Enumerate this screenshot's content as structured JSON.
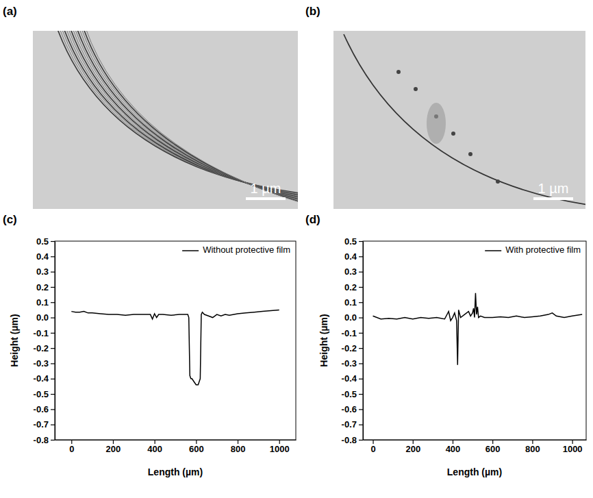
{
  "panel_labels": [
    "(a)",
    "(b)",
    "(c)",
    "(d)"
  ],
  "images": [
    {
      "scale_bar": "1 µm"
    },
    {
      "scale_bar": "1 µm"
    }
  ],
  "chart_data": [
    {
      "type": "line",
      "x_label": "Length (µm)",
      "y_label": "Height (µm)",
      "x": [
        0,
        20,
        40,
        60,
        80,
        100,
        140,
        180,
        220,
        260,
        300,
        340,
        380,
        390,
        400,
        410,
        420,
        440,
        480,
        520,
        550,
        560,
        565,
        570,
        575,
        580,
        590,
        600,
        610,
        615,
        620,
        625,
        630,
        640,
        660,
        680,
        700,
        720,
        740,
        760,
        800,
        840,
        880,
        920,
        960,
        1000
      ],
      "series": [
        {
          "name": "Without protective film",
          "color": "#000000",
          "values": [
            0.04,
            0.035,
            0.035,
            0.04,
            0.03,
            0.03,
            0.025,
            0.02,
            0.02,
            0.015,
            0.02,
            0.02,
            0.02,
            -0.01,
            0.025,
            0.0,
            0.02,
            0.02,
            0.015,
            0.02,
            0.02,
            0.02,
            0.0,
            -0.38,
            -0.4,
            -0.4,
            -0.42,
            -0.44,
            -0.44,
            -0.42,
            -0.4,
            0.02,
            0.035,
            0.02,
            0.01,
            0.0,
            0.02,
            0.01,
            0.02,
            0.015,
            0.025,
            0.03,
            0.035,
            0.04,
            0.045,
            0.05
          ]
        }
      ],
      "xlim": [
        -80,
        1080
      ],
      "xticks": [
        0,
        200,
        400,
        600,
        800,
        1000
      ],
      "ylim": [
        -0.8,
        0.5
      ],
      "yticks": [
        -0.8,
        -0.7,
        -0.6,
        -0.5,
        -0.4,
        -0.3,
        -0.2,
        -0.1,
        {
          "value": 0,
          "label": "0.0"
        },
        0.1,
        0.2,
        0.3,
        0.4,
        0.5
      ],
      "legend": "upper right",
      "grid": false
    },
    {
      "type": "line",
      "x_label": "Length (µm)",
      "y_label": "Height (µm)",
      "x": [
        0,
        40,
        80,
        120,
        160,
        200,
        240,
        280,
        320,
        360,
        380,
        390,
        400,
        410,
        420,
        425,
        430,
        440,
        460,
        480,
        490,
        500,
        505,
        510,
        515,
        520,
        525,
        530,
        540,
        560,
        600,
        640,
        680,
        720,
        760,
        800,
        840,
        880,
        900,
        920,
        960,
        1000,
        1050
      ],
      "series": [
        {
          "name": "With protective film",
          "color": "#000000",
          "values": [
            0.01,
            -0.01,
            -0.005,
            -0.01,
            0.0,
            -0.01,
            0.0,
            -0.005,
            0.0,
            -0.01,
            0.04,
            -0.02,
            0.0,
            0.03,
            -0.02,
            -0.31,
            0.05,
            0.0,
            0.02,
            0.04,
            0.01,
            0.03,
            0.06,
            0.0,
            0.16,
            0.02,
            0.07,
            0.0,
            0.01,
            0.0,
            0.0,
            0.005,
            0.0,
            0.01,
            0.0,
            0.005,
            0.01,
            0.02,
            0.03,
            0.01,
            0.0,
            0.01,
            0.02
          ]
        }
      ],
      "xlim": [
        -50,
        1070
      ],
      "xticks": [
        0,
        200,
        400,
        600,
        800,
        1000
      ],
      "ylim": [
        -0.8,
        0.5
      ],
      "yticks": [
        -0.8,
        -0.7,
        -0.6,
        -0.5,
        -0.4,
        -0.3,
        -0.2,
        -0.1,
        {
          "value": 0,
          "label": "0.0"
        },
        0.1,
        0.2,
        0.3,
        0.4,
        0.5
      ],
      "legend": "upper right",
      "grid": false
    }
  ]
}
